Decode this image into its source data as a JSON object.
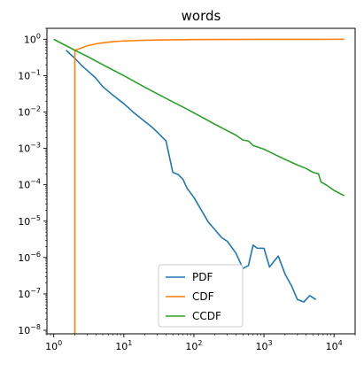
{
  "chart_data": {
    "type": "line",
    "title": "words",
    "xlabel": "",
    "ylabel": "",
    "xscale": "log",
    "yscale": "log",
    "xlim": [
      0.8,
      20000
    ],
    "ylim": [
      8e-09,
      2
    ],
    "grid": false,
    "legend_position": "lower-center",
    "x_ticks": [
      {
        "value": 1,
        "base": "10",
        "exp": "0"
      },
      {
        "value": 10,
        "base": "10",
        "exp": "1"
      },
      {
        "value": 100,
        "base": "10",
        "exp": "2"
      },
      {
        "value": 1000,
        "base": "10",
        "exp": "3"
      },
      {
        "value": 10000,
        "base": "10",
        "exp": "4"
      }
    ],
    "y_ticks": [
      {
        "value": 1e-08,
        "base": "10",
        "exp": "−8"
      },
      {
        "value": 1e-07,
        "base": "10",
        "exp": "−7"
      },
      {
        "value": 1e-06,
        "base": "10",
        "exp": "−6"
      },
      {
        "value": 1e-05,
        "base": "10",
        "exp": "−5"
      },
      {
        "value": 0.0001,
        "base": "10",
        "exp": "−4"
      },
      {
        "value": 0.001,
        "base": "10",
        "exp": "−3"
      },
      {
        "value": 0.01,
        "base": "10",
        "exp": "−2"
      },
      {
        "value": 0.1,
        "base": "10",
        "exp": "−1"
      },
      {
        "value": 1,
        "base": "10",
        "exp": "0"
      }
    ],
    "series": [
      {
        "name": "PDF",
        "color": "#1f77b4",
        "points": [
          [
            1.5,
            0.5
          ],
          [
            2,
            0.3
          ],
          [
            2.5,
            0.19
          ],
          [
            3,
            0.14
          ],
          [
            4,
            0.085
          ],
          [
            5,
            0.05
          ],
          [
            7,
            0.029
          ],
          [
            10,
            0.017
          ],
          [
            14,
            0.0095
          ],
          [
            20,
            0.0055
          ],
          [
            25,
            0.0039
          ],
          [
            30,
            0.0028
          ],
          [
            40,
            0.0016
          ],
          [
            50,
            0.00022
          ],
          [
            60,
            0.00019
          ],
          [
            70,
            0.00014
          ],
          [
            80,
            8e-05
          ],
          [
            100,
            4.5e-05
          ],
          [
            130,
            1.9e-05
          ],
          [
            160,
            9.5e-06
          ],
          [
            200,
            5.8e-06
          ],
          [
            250,
            3.5e-06
          ],
          [
            300,
            2.8e-06
          ],
          [
            400,
            1.3e-06
          ],
          [
            500,
            5e-07
          ],
          [
            600,
            6e-07
          ],
          [
            700,
            2.2e-06
          ],
          [
            800,
            1.8e-06
          ],
          [
            1000,
            1.8e-06
          ],
          [
            1200,
            5.5e-07
          ],
          [
            1600,
            1.1e-06
          ],
          [
            2000,
            3.5e-07
          ],
          [
            2500,
            1.6e-07
          ],
          [
            3000,
            7e-08
          ],
          [
            3700,
            6e-08
          ],
          [
            4500,
            9e-08
          ],
          [
            5500,
            7e-08
          ]
        ]
      },
      {
        "name": "CDF",
        "color": "#ff7f0e",
        "points": [
          [
            2,
            8e-09
          ],
          [
            2,
            0.5
          ],
          [
            2.5,
            0.58
          ],
          [
            3,
            0.66
          ],
          [
            4,
            0.75
          ],
          [
            5,
            0.8
          ],
          [
            7,
            0.86
          ],
          [
            10,
            0.9
          ],
          [
            20,
            0.94
          ],
          [
            50,
            0.97
          ],
          [
            100,
            0.98
          ],
          [
            200,
            0.99
          ],
          [
            1000,
            0.995
          ],
          [
            5000,
            0.998
          ],
          [
            14000,
            1.0
          ]
        ]
      },
      {
        "name": "CCDF",
        "color": "#2ca02c",
        "points": [
          [
            1,
            1.0
          ],
          [
            2,
            0.5
          ],
          [
            3,
            0.34
          ],
          [
            5,
            0.2
          ],
          [
            10,
            0.1
          ],
          [
            20,
            0.048
          ],
          [
            50,
            0.019
          ],
          [
            80,
            0.012
          ],
          [
            100,
            0.0095
          ],
          [
            200,
            0.0046
          ],
          [
            400,
            0.0023
          ],
          [
            500,
            0.0017
          ],
          [
            600,
            0.0016
          ],
          [
            700,
            0.0012
          ],
          [
            800,
            0.0011
          ],
          [
            1000,
            0.00095
          ],
          [
            1500,
            0.00065
          ],
          [
            2000,
            0.0005
          ],
          [
            3000,
            0.00035
          ],
          [
            4000,
            0.00028
          ],
          [
            5000,
            0.00022
          ],
          [
            6000,
            0.0002
          ],
          [
            6500,
            0.00012
          ],
          [
            8000,
            9.5e-05
          ],
          [
            10000,
            7e-05
          ],
          [
            14000,
            5e-05
          ]
        ]
      }
    ]
  }
}
